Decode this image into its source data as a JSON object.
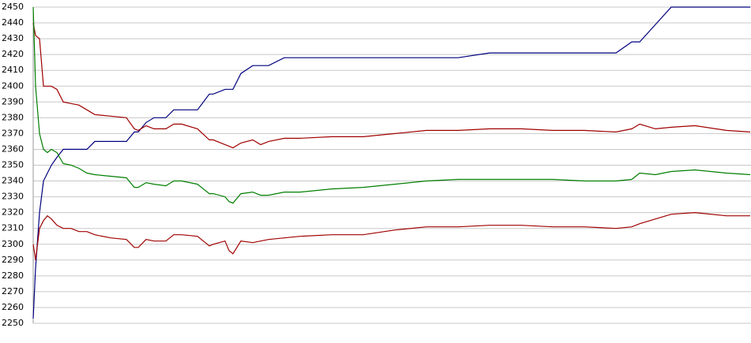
{
  "chart_data": {
    "type": "line",
    "x": [
      0,
      3,
      8,
      13,
      18,
      23,
      30,
      38,
      48,
      58,
      68,
      78,
      98,
      118,
      128,
      133,
      143,
      153,
      168,
      178,
      188,
      208,
      223,
      228,
      243,
      248,
      253,
      263,
      278,
      288,
      298,
      318,
      338,
      378,
      418,
      458,
      498,
      538,
      578,
      618,
      658,
      698,
      738,
      758,
      768,
      788,
      808,
      838,
      878,
      908
    ],
    "xlim": [
      0,
      908
    ],
    "ylim": [
      2250,
      2450
    ],
    "yticks": [
      2250,
      2260,
      2270,
      2280,
      2290,
      2300,
      2310,
      2320,
      2330,
      2340,
      2350,
      2360,
      2370,
      2380,
      2390,
      2400,
      2410,
      2420,
      2430,
      2440,
      2450
    ],
    "grid": true,
    "series": [
      {
        "color": "#00007f",
        "values": [
          2253,
          2285,
          2320,
          2340,
          2345,
          2350,
          2355,
          2360,
          2360,
          2360,
          2360,
          2365,
          2365,
          2365,
          2371,
          2371,
          2377,
          2380,
          2380,
          2385,
          2385,
          2385,
          2395,
          2395,
          2398,
          2398,
          2398,
          2408,
          2413,
          2413,
          2413,
          2418,
          2418,
          2418,
          2418,
          2418,
          2418,
          2418,
          2421,
          2421,
          2421,
          2421,
          2421,
          2428,
          2428,
          2439,
          2450,
          2450,
          2450,
          2450
        ]
      },
      {
        "color": "#a00000",
        "values": [
          2440,
          2432,
          2430,
          2400,
          2400,
          2400,
          2398,
          2390,
          2389,
          2388,
          2385,
          2382,
          2381,
          2380,
          2373,
          2372,
          2375,
          2373,
          2373,
          2376,
          2376,
          2373,
          2366,
          2366,
          2363,
          2362,
          2361,
          2364,
          2366,
          2363,
          2365,
          2367,
          2367,
          2368,
          2368,
          2370,
          2372,
          2372,
          2373,
          2373,
          2372,
          2372,
          2371,
          2373,
          2376,
          2373,
          2374,
          2375,
          2372,
          2371
        ]
      },
      {
        "color": "#007f00",
        "values": [
          2450,
          2400,
          2370,
          2360,
          2358,
          2360,
          2358,
          2351,
          2350,
          2348,
          2345,
          2344,
          2343,
          2342,
          2336,
          2336,
          2339,
          2338,
          2337,
          2340,
          2340,
          2338,
          2332,
          2332,
          2330,
          2327,
          2326,
          2332,
          2333,
          2331,
          2331,
          2333,
          2333,
          2335,
          2336,
          2338,
          2340,
          2341,
          2341,
          2341,
          2341,
          2340,
          2340,
          2341,
          2345,
          2344,
          2346,
          2347,
          2345,
          2344
        ]
      },
      {
        "color": "#a00000",
        "values": [
          2300,
          2290,
          2310,
          2315,
          2318,
          2316,
          2312,
          2310,
          2310,
          2308,
          2308,
          2306,
          2304,
          2303,
          2298,
          2298,
          2303,
          2302,
          2302,
          2306,
          2306,
          2305,
          2299,
          2300,
          2302,
          2296,
          2294,
          2302,
          2301,
          2302,
          2303,
          2304,
          2305,
          2306,
          2306,
          2309,
          2311,
          2311,
          2312,
          2312,
          2311,
          2311,
          2310,
          2311,
          2313,
          2316,
          2319,
          2320,
          2318,
          2318
        ]
      }
    ]
  }
}
